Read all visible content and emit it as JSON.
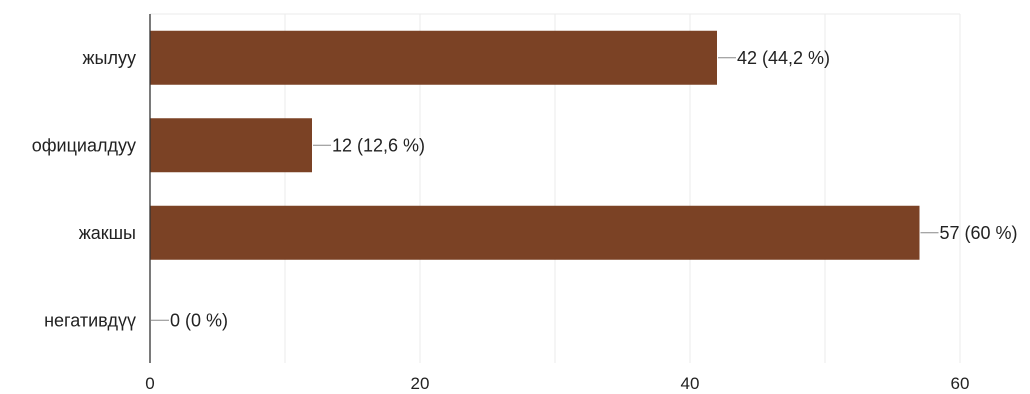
{
  "chart_data": {
    "type": "bar",
    "orientation": "horizontal",
    "categories": [
      "жылуу",
      "официалдуу",
      "жакшы",
      "негативдүү"
    ],
    "values": [
      42,
      12,
      57,
      0
    ],
    "data_labels": [
      "42 (44,2 %)",
      "12 (12,6 %)",
      "57 (60 %)",
      "0 (0 %)"
    ],
    "title": "",
    "xlabel": "",
    "ylabel": "",
    "xlim": [
      0,
      60
    ],
    "x_ticks": [
      0,
      20,
      40,
      60
    ],
    "minor_gridlines": [
      10,
      30,
      50
    ],
    "grid": true,
    "legend": "none",
    "bar_color": "#7b4225",
    "grid_color": "#ebebeb",
    "axis_color": "#333333",
    "leader_color": "#888888"
  }
}
